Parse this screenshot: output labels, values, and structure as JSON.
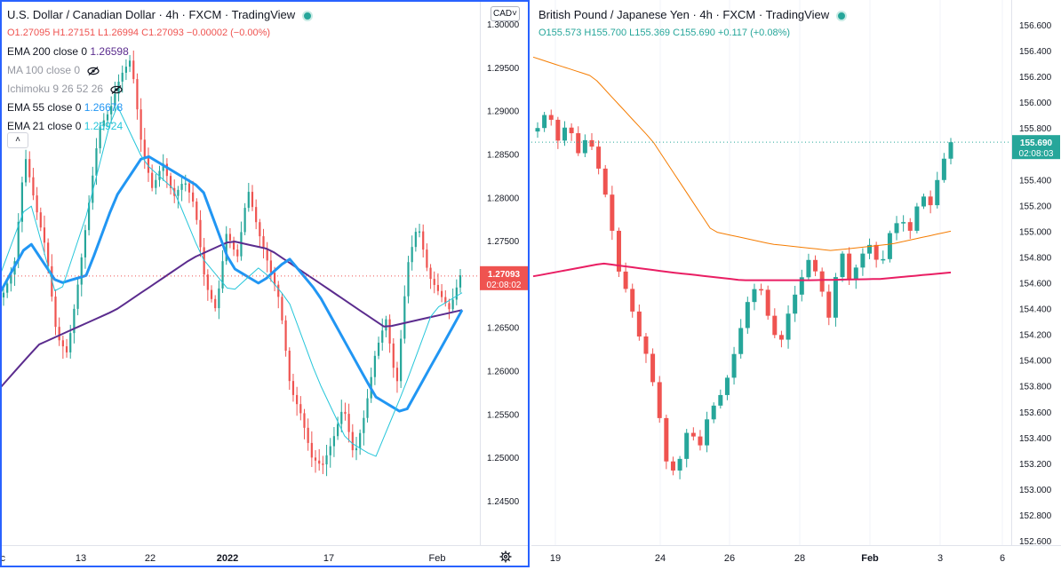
{
  "left": {
    "title": "U.S. Dollar / Canadian Dollar · 4h · FXCM · TradingView",
    "ohlc": {
      "o": "O1.27095",
      "h": "H1.27151",
      "l": "L1.26994",
      "c": "C1.27093",
      "chg": "−0.00002 (−0.00%)"
    },
    "indicators": [
      {
        "label": "EMA 200 close 0",
        "value": "1.26598",
        "color": "#5b2c8e",
        "hidden": false
      },
      {
        "label": "MA 100 close 0",
        "value": "",
        "color": "#9598a1",
        "hidden": true
      },
      {
        "label": "Ichimoku 9 26 52 26",
        "value": "",
        "color": "#9598a1",
        "hidden": true
      },
      {
        "label": "EMA 55 close 0",
        "value": "1.26678",
        "color": "#2196f3",
        "hidden": false
      },
      {
        "label": "EMA 21 close 0",
        "value": "1.26924",
        "color": "#26c6da",
        "hidden": false
      }
    ],
    "currency_button": "CAD",
    "price_tag": {
      "price": "1.27093",
      "countdown": "02:08:02"
    }
  },
  "right": {
    "title": "British Pound / Japanese Yen · 4h · FXCM · TradingView",
    "ohlc": {
      "o": "O155.573",
      "h": "H155.700",
      "l": "L155.369",
      "c": "C155.690",
      "chg": "+0.117 (+0.08%)"
    },
    "price_tag": {
      "price": "155.690",
      "countdown": "02:08:03"
    }
  },
  "chart_data": [
    {
      "type": "candlestick",
      "symbol": "USDCAD",
      "interval": "4h",
      "ylim": [
        1.2425,
        1.3005
      ],
      "y_ticks": [
        "1.30000",
        "1.29500",
        "1.29000",
        "1.28500",
        "1.28000",
        "1.27500",
        "1.27000",
        "1.26500",
        "1.26000",
        "1.25500",
        "1.25000",
        "1.24500"
      ],
      "x_ticks": [
        "Dec",
        "13",
        "22",
        "2022",
        "17",
        "Feb"
      ],
      "close_path": [
        1.269,
        1.272,
        1.285,
        1.279,
        1.274,
        1.264,
        1.262,
        1.27,
        1.279,
        1.288,
        1.29,
        1.294,
        1.296,
        1.286,
        1.281,
        1.284,
        1.28,
        1.282,
        1.279,
        1.27,
        1.267,
        1.276,
        1.273,
        1.281,
        1.276,
        1.272,
        1.268,
        1.258,
        1.255,
        1.25,
        1.249,
        1.252,
        1.256,
        1.25,
        1.255,
        1.262,
        1.266,
        1.258,
        1.272,
        1.277,
        1.271,
        1.269,
        1.267,
        1.271
      ],
      "series": [
        {
          "name": "EMA 200",
          "color": "#5b2c8e",
          "values": [
            1.258,
            1.263,
            1.265,
            1.267,
            1.27,
            1.273,
            1.275,
            1.274,
            1.271,
            1.268,
            1.265,
            1.266,
            1.267
          ]
        },
        {
          "name": "EMA 55",
          "color": "#2196f3",
          "values": [
            1.269,
            1.275,
            1.27,
            1.271,
            1.28,
            1.285,
            1.283,
            1.281,
            1.272,
            1.27,
            1.273,
            1.269,
            1.263,
            1.257,
            1.255,
            1.261,
            1.267
          ]
        },
        {
          "name": "EMA 21",
          "color": "#26c6da",
          "values": [
            1.271,
            1.28,
            1.268,
            1.278,
            1.291,
            1.284,
            1.281,
            1.273,
            1.269,
            1.272,
            1.268,
            1.259,
            1.252,
            1.25,
            1.258,
            1.267,
            1.269
          ]
        }
      ]
    },
    {
      "type": "candlestick",
      "symbol": "GBPJPY",
      "interval": "4h",
      "ylim": [
        152.6,
        156.8
      ],
      "y_ticks": [
        "156.600",
        "156.400",
        "156.200",
        "156.000",
        "155.800",
        "155.600",
        "155.400",
        "155.200",
        "155.000",
        "154.800",
        "154.600",
        "154.400",
        "154.200",
        "154.000",
        "153.800",
        "153.600",
        "153.400",
        "153.200",
        "153.000",
        "152.800",
        "152.600"
      ],
      "x_ticks": [
        "19",
        "24",
        "26",
        "28",
        "Feb",
        "3",
        "6"
      ],
      "close_path": [
        155.8,
        155.95,
        155.7,
        155.85,
        155.6,
        155.75,
        155.5,
        155.2,
        154.7,
        154.5,
        154.2,
        154.0,
        153.6,
        153.1,
        153.2,
        153.5,
        153.3,
        153.6,
        153.7,
        153.9,
        154.2,
        154.5,
        154.6,
        154.3,
        154.1,
        154.4,
        154.6,
        154.8,
        154.6,
        154.3,
        154.9,
        154.6,
        154.8,
        154.9,
        154.7,
        155.0,
        155.1,
        155.0,
        155.3,
        155.2,
        155.5,
        155.69
      ],
      "series": [
        {
          "name": "EMA 55",
          "color": "#f57c00",
          "values": [
            156.35,
            156.2,
            155.7,
            155.0,
            154.9,
            154.85,
            154.9,
            155.0
          ]
        },
        {
          "name": "EMA 200",
          "color": "#e91e63",
          "values": [
            154.65,
            154.75,
            154.68,
            154.62,
            154.62,
            154.63,
            154.68
          ]
        }
      ]
    }
  ]
}
